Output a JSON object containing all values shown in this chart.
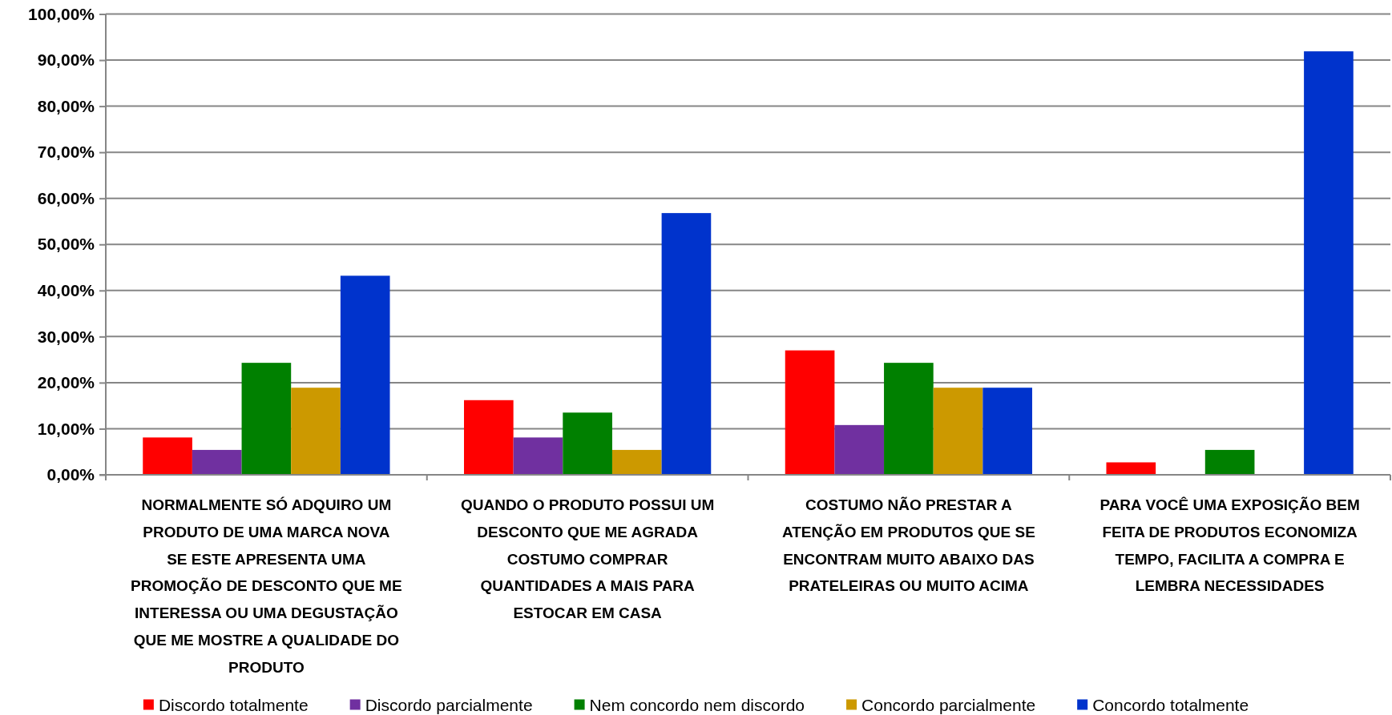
{
  "chart_data": {
    "type": "bar",
    "categories": [
      "NORMALMENTE SÓ ADQUIRO UM\nPRODUTO DE UMA MARCA NOVA\nSE ESTE APRESENTA UMA\nPROMOÇÃO DE DESCONTO QUE ME\nINTERESSA OU UMA DEGUSTAÇÃO\nQUE ME MOSTRE A QUALIDADE DO\nPRODUTO",
      "QUANDO O PRODUTO POSSUI UM\nDESCONTO QUE ME AGRADA\nCOSTUMO COMPRAR\nQUANTIDADES A MAIS PARA\nESTOCAR EM CASA",
      "COSTUMO NÃO PRESTAR A\nATENÇÃO EM PRODUTOS QUE SE\nENCONTRAM MUITO ABAIXO DAS\nPRATELEIRAS OU MUITO ACIMA",
      "PARA VOCÊ UMA EXPOSIÇÃO BEM\nFEITA DE PRODUTOS ECONOMIZA\nTEMPO, FACILITA A COMPRA E\nLEMBRA NECESSIDADES"
    ],
    "series": [
      {
        "name": "Discordo totalmente",
        "color": "#ff0000",
        "values": [
          8.1,
          16.2,
          27.0,
          2.7
        ]
      },
      {
        "name": "Discordo parcialmente",
        "color": "#7030a0",
        "values": [
          5.4,
          8.1,
          10.8,
          0
        ]
      },
      {
        "name": "Nem concordo nem discordo",
        "color": "#008000",
        "values": [
          24.3,
          13.5,
          24.3,
          5.4
        ]
      },
      {
        "name": "Concordo parcialmente",
        "color": "#cc9900",
        "values": [
          18.9,
          5.4,
          18.9,
          0
        ]
      },
      {
        "name": "Concordo totalmente",
        "color": "#0033cc",
        "values": [
          43.2,
          56.8,
          18.9,
          91.9
        ]
      }
    ],
    "ylim": [
      0,
      100
    ],
    "yticks": [
      {
        "value": 0,
        "label": "0,00%"
      },
      {
        "value": 10,
        "label": "10,00%"
      },
      {
        "value": 20,
        "label": "20,00%"
      },
      {
        "value": 30,
        "label": "30,00%"
      },
      {
        "value": 40,
        "label": "40,00%"
      },
      {
        "value": 50,
        "label": "50,00%"
      },
      {
        "value": 60,
        "label": "60,00%"
      },
      {
        "value": 70,
        "label": "70,00%"
      },
      {
        "value": 80,
        "label": "80,00%"
      },
      {
        "value": 90,
        "label": "90,00%"
      },
      {
        "value": 100,
        "label": "100,00%"
      }
    ],
    "grid": "y",
    "legend": "bottom"
  }
}
